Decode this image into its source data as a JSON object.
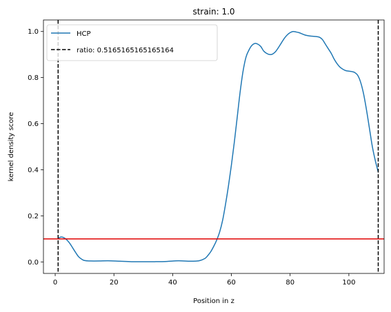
{
  "chart_data": {
    "type": "line",
    "title": "strain: 1.0",
    "xlabel": "Position in z",
    "ylabel": "kernel density score",
    "xlim": [
      -4,
      112
    ],
    "ylim": [
      -0.05,
      1.05
    ],
    "xticks": [
      0,
      20,
      40,
      60,
      80,
      100
    ],
    "yticks": [
      0.0,
      0.2,
      0.4,
      0.6,
      0.8,
      1.0
    ],
    "xtick_labels": [
      "0",
      "20",
      "40",
      "60",
      "80",
      "100"
    ],
    "ytick_labels": [
      "0.0",
      "0.2",
      "0.4",
      "0.6",
      "0.8",
      "1.0"
    ],
    "grid": false,
    "legend_position": "top-left",
    "series": [
      {
        "name": "HCP",
        "color": "#1f77b4",
        "style": "solid",
        "x": [
          1,
          2,
          3,
          4,
          5,
          6,
          7,
          8,
          9,
          10,
          12,
          15,
          18,
          22,
          26,
          30,
          34,
          38,
          42,
          46,
          49,
          51,
          52,
          53,
          54,
          55,
          56,
          57,
          58,
          59,
          60,
          61,
          62,
          63,
          64,
          65,
          66,
          67,
          68,
          69,
          70,
          71,
          72,
          73,
          74,
          75,
          76,
          77,
          78,
          79,
          80,
          81,
          82,
          83,
          84,
          85,
          86,
          87,
          88,
          89,
          90,
          91,
          92,
          93,
          94,
          95,
          96,
          97,
          98,
          99,
          100,
          101,
          102,
          103,
          104,
          105,
          106,
          107,
          108,
          109,
          110
        ],
        "y": [
          0.102,
          0.108,
          0.105,
          0.095,
          0.08,
          0.06,
          0.04,
          0.022,
          0.012,
          0.006,
          0.004,
          0.004,
          0.005,
          0.003,
          0.001,
          0.001,
          0.001,
          0.002,
          0.005,
          0.003,
          0.005,
          0.015,
          0.028,
          0.045,
          0.068,
          0.095,
          0.13,
          0.18,
          0.25,
          0.33,
          0.42,
          0.52,
          0.63,
          0.74,
          0.83,
          0.89,
          0.92,
          0.94,
          0.948,
          0.945,
          0.935,
          0.915,
          0.905,
          0.9,
          0.902,
          0.912,
          0.93,
          0.95,
          0.97,
          0.985,
          0.995,
          1.0,
          0.998,
          0.995,
          0.99,
          0.985,
          0.982,
          0.98,
          0.979,
          0.978,
          0.975,
          0.965,
          0.945,
          0.925,
          0.905,
          0.88,
          0.86,
          0.845,
          0.836,
          0.83,
          0.828,
          0.826,
          0.822,
          0.81,
          0.78,
          0.73,
          0.66,
          0.58,
          0.5,
          0.44,
          0.39
        ]
      },
      {
        "name": "ratio: 0.5165165165165164",
        "color": "#000000",
        "style": "dashed",
        "orientation": "vertical",
        "x_positions": [
          1,
          110
        ]
      }
    ],
    "hlines": [
      {
        "y": 0.1,
        "color": "#e00000",
        "style": "solid"
      }
    ]
  }
}
